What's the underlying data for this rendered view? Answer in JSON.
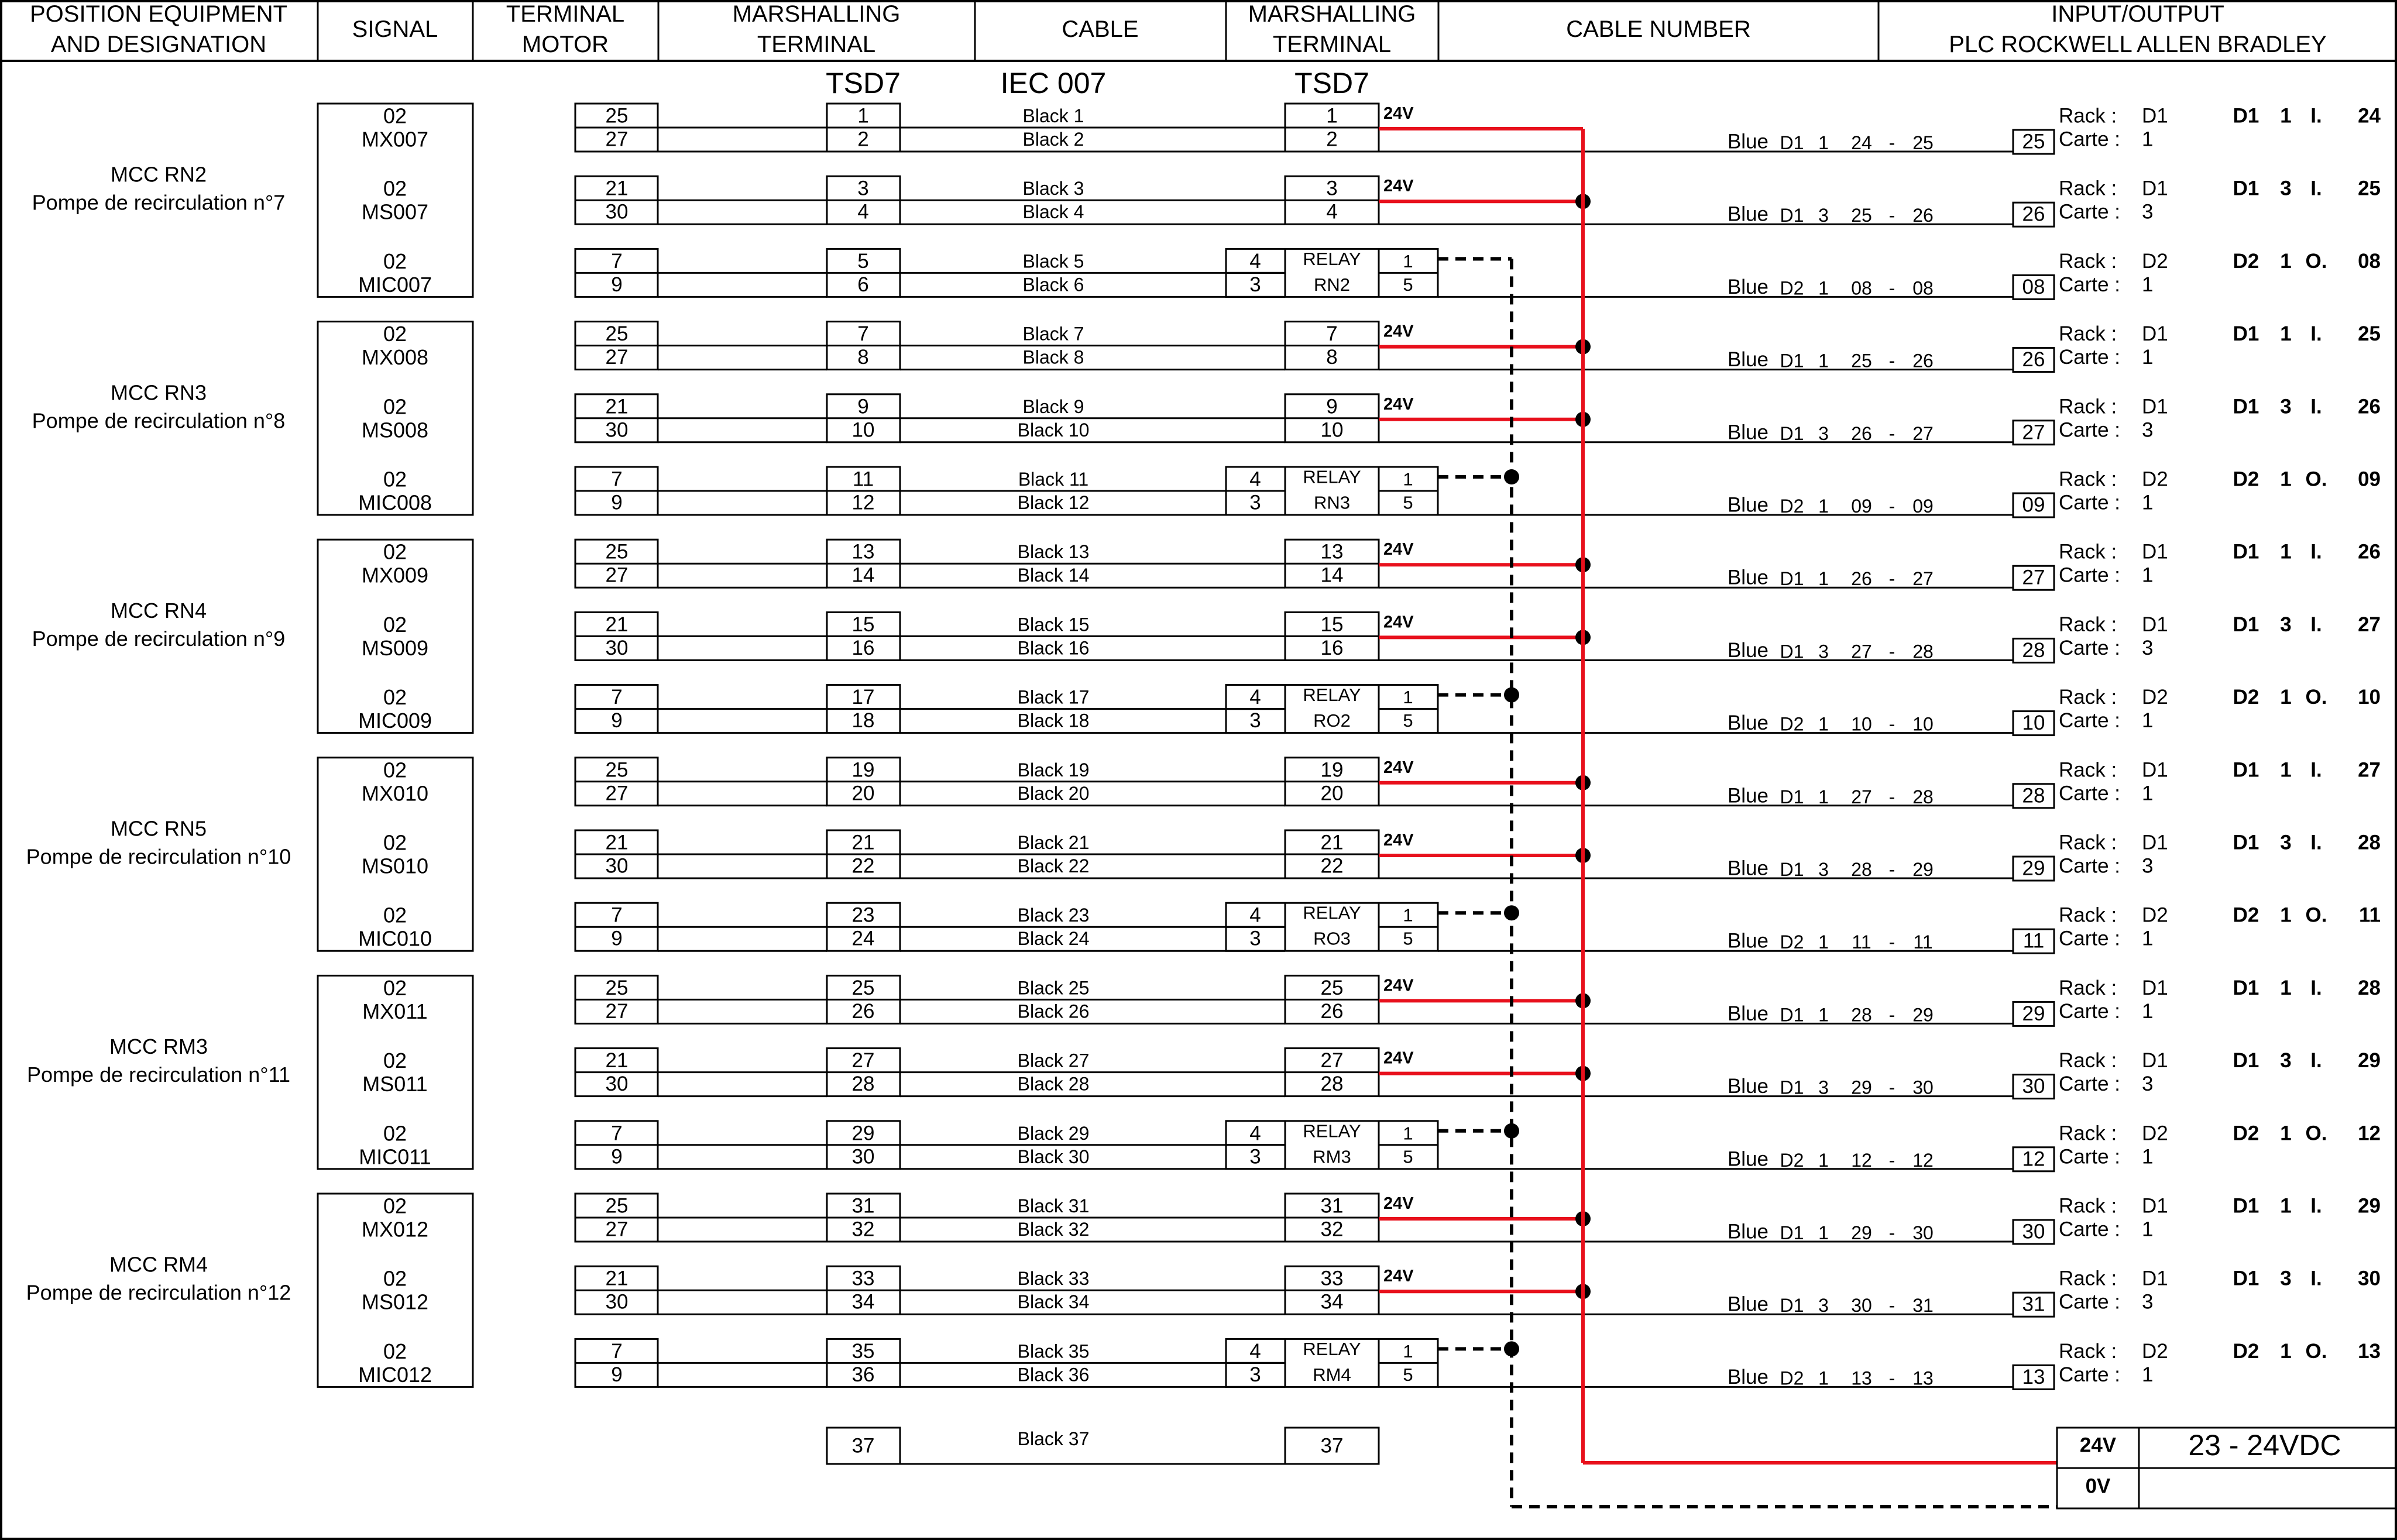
{
  "headers": [
    {
      "lines": [
        "POSITION EQUIPMENT",
        "AND DESIGNATION"
      ]
    },
    {
      "lines": [
        "SIGNAL"
      ]
    },
    {
      "lines": [
        "TERMINAL",
        "MOTOR"
      ]
    },
    {
      "lines": [
        "MARSHALLING",
        "TERMINAL"
      ]
    },
    {
      "lines": [
        "CABLE"
      ]
    },
    {
      "lines": [
        "MARSHALLING",
        "TERMINAL"
      ]
    },
    {
      "lines": [
        "CABLE NUMBER"
      ]
    },
    {
      "lines": [
        "INPUT/OUTPUT",
        "PLC ROCKWELL ALLEN BRADLEY"
      ]
    }
  ],
  "subheaders": {
    "tsd_left": "TSD7",
    "cable_ref": "IEC 007",
    "tsd_right": "TSD7"
  },
  "colors": {
    "red": "#e8101c",
    "line": "#000000"
  },
  "groups": [
    {
      "lines": [
        "MCC RN2",
        "Pompe de recirculation n°7"
      ]
    },
    {
      "lines": [
        "MCC RN3",
        "Pompe de recirculation n°8"
      ]
    },
    {
      "lines": [
        "MCC RN4",
        "Pompe de recirculation n°9"
      ]
    },
    {
      "lines": [
        "MCC RN5",
        "Pompe de recirculation n°10"
      ]
    },
    {
      "lines": [
        "MCC RM3",
        "Pompe de recirculation n°11"
      ]
    },
    {
      "lines": [
        "MCC RM4",
        "Pompe de recirculation n°12"
      ]
    }
  ],
  "rows": [
    {
      "sig": [
        "02",
        "MX007"
      ],
      "mt": [
        "25",
        "27"
      ],
      "t": [
        "1",
        "2"
      ],
      "cab": [
        "Black 1",
        "Black 2"
      ],
      "tr": [
        "1",
        "2"
      ],
      "relay": null,
      "v24": "24V",
      "blue": "Blue",
      "cn": [
        "D1",
        "1",
        "24",
        "-",
        "25"
      ],
      "box": "25",
      "rack": [
        "Rack :",
        "D1"
      ],
      "carte": [
        "Carte :",
        "1"
      ],
      "addr": [
        "D1",
        "1",
        "I.",
        "24"
      ]
    },
    {
      "sig": [
        "02",
        "MS007"
      ],
      "mt": [
        "21",
        "30"
      ],
      "t": [
        "3",
        "4"
      ],
      "cab": [
        "Black 3",
        "Black 4"
      ],
      "tr": [
        "3",
        "4"
      ],
      "relay": null,
      "v24": "24V",
      "blue": "Blue",
      "cn": [
        "D1",
        "3",
        "25",
        "-",
        "26"
      ],
      "box": "26",
      "rack": [
        "Rack :",
        "D1"
      ],
      "carte": [
        "Carte :",
        "3"
      ],
      "addr": [
        "D1",
        "3",
        "I.",
        "25"
      ]
    },
    {
      "sig": [
        "02",
        "MIC007"
      ],
      "mt": [
        "7",
        "9"
      ],
      "t": [
        "5",
        "6"
      ],
      "cab": [
        "Black 5",
        "Black 6"
      ],
      "tr": null,
      "relay": {
        "l": [
          "4",
          "3"
        ],
        "m": [
          "RELAY",
          "RN2"
        ],
        "r": [
          "1",
          "5"
        ]
      },
      "v24": "",
      "blue": "Blue",
      "cn": [
        "D2",
        "1",
        "08",
        "-",
        "08"
      ],
      "box": "08",
      "rack": [
        "Rack :",
        "D2"
      ],
      "carte": [
        "Carte :",
        "1"
      ],
      "addr": [
        "D2",
        "1",
        "O.",
        "08"
      ]
    },
    {
      "sig": [
        "02",
        "MX008"
      ],
      "mt": [
        "25",
        "27"
      ],
      "t": [
        "7",
        "8"
      ],
      "cab": [
        "Black 7",
        "Black 8"
      ],
      "tr": [
        "7",
        "8"
      ],
      "relay": null,
      "v24": "24V",
      "blue": "Blue",
      "cn": [
        "D1",
        "1",
        "25",
        "-",
        "26"
      ],
      "box": "26",
      "rack": [
        "Rack :",
        "D1"
      ],
      "carte": [
        "Carte :",
        "1"
      ],
      "addr": [
        "D1",
        "1",
        "I.",
        "25"
      ]
    },
    {
      "sig": [
        "02",
        "MS008"
      ],
      "mt": [
        "21",
        "30"
      ],
      "t": [
        "9",
        "10"
      ],
      "cab": [
        "Black 9",
        "Black 10"
      ],
      "tr": [
        "9",
        "10"
      ],
      "relay": null,
      "v24": "24V",
      "blue": "Blue",
      "cn": [
        "D1",
        "3",
        "26",
        "-",
        "27"
      ],
      "box": "27",
      "rack": [
        "Rack :",
        "D1"
      ],
      "carte": [
        "Carte :",
        "3"
      ],
      "addr": [
        "D1",
        "3",
        "I.",
        "26"
      ]
    },
    {
      "sig": [
        "02",
        "MIC008"
      ],
      "mt": [
        "7",
        "9"
      ],
      "t": [
        "11",
        "12"
      ],
      "cab": [
        "Black 11",
        "Black 12"
      ],
      "tr": null,
      "relay": {
        "l": [
          "4",
          "3"
        ],
        "m": [
          "RELAY",
          "RN3"
        ],
        "r": [
          "1",
          "5"
        ]
      },
      "v24": "",
      "blue": "Blue",
      "cn": [
        "D2",
        "1",
        "09",
        "-",
        "09"
      ],
      "box": "09",
      "rack": [
        "Rack :",
        "D2"
      ],
      "carte": [
        "Carte :",
        "1"
      ],
      "addr": [
        "D2",
        "1",
        "O.",
        "09"
      ]
    },
    {
      "sig": [
        "02",
        "MX009"
      ],
      "mt": [
        "25",
        "27"
      ],
      "t": [
        "13",
        "14"
      ],
      "cab": [
        "Black 13",
        "Black 14"
      ],
      "tr": [
        "13",
        "14"
      ],
      "relay": null,
      "v24": "24V",
      "blue": "Blue",
      "cn": [
        "D1",
        "1",
        "26",
        "-",
        "27"
      ],
      "box": "27",
      "rack": [
        "Rack :",
        "D1"
      ],
      "carte": [
        "Carte :",
        "1"
      ],
      "addr": [
        "D1",
        "1",
        "I.",
        "26"
      ]
    },
    {
      "sig": [
        "02",
        "MS009"
      ],
      "mt": [
        "21",
        "30"
      ],
      "t": [
        "15",
        "16"
      ],
      "cab": [
        "Black 15",
        "Black 16"
      ],
      "tr": [
        "15",
        "16"
      ],
      "relay": null,
      "v24": "24V",
      "blue": "Blue",
      "cn": [
        "D1",
        "3",
        "27",
        "-",
        "28"
      ],
      "box": "28",
      "rack": [
        "Rack :",
        "D1"
      ],
      "carte": [
        "Carte :",
        "3"
      ],
      "addr": [
        "D1",
        "3",
        "I.",
        "27"
      ]
    },
    {
      "sig": [
        "02",
        "MIC009"
      ],
      "mt": [
        "7",
        "9"
      ],
      "t": [
        "17",
        "18"
      ],
      "cab": [
        "Black 17",
        "Black 18"
      ],
      "tr": null,
      "relay": {
        "l": [
          "4",
          "3"
        ],
        "m": [
          "RELAY",
          "RO2"
        ],
        "r": [
          "1",
          "5"
        ]
      },
      "v24": "",
      "blue": "Blue",
      "cn": [
        "D2",
        "1",
        "10",
        "-",
        "10"
      ],
      "box": "10",
      "rack": [
        "Rack :",
        "D2"
      ],
      "carte": [
        "Carte :",
        "1"
      ],
      "addr": [
        "D2",
        "1",
        "O.",
        "10"
      ]
    },
    {
      "sig": [
        "02",
        "MX010"
      ],
      "mt": [
        "25",
        "27"
      ],
      "t": [
        "19",
        "20"
      ],
      "cab": [
        "Black 19",
        "Black 20"
      ],
      "tr": [
        "19",
        "20"
      ],
      "relay": null,
      "v24": "24V",
      "blue": "Blue",
      "cn": [
        "D1",
        "1",
        "27",
        "-",
        "28"
      ],
      "box": "28",
      "rack": [
        "Rack :",
        "D1"
      ],
      "carte": [
        "Carte :",
        "1"
      ],
      "addr": [
        "D1",
        "1",
        "I.",
        "27"
      ]
    },
    {
      "sig": [
        "02",
        "MS010"
      ],
      "mt": [
        "21",
        "30"
      ],
      "t": [
        "21",
        "22"
      ],
      "cab": [
        "Black 21",
        "Black 22"
      ],
      "tr": [
        "21",
        "22"
      ],
      "relay": null,
      "v24": "24V",
      "blue": "Blue",
      "cn": [
        "D1",
        "3",
        "28",
        "-",
        "29"
      ],
      "box": "29",
      "rack": [
        "Rack :",
        "D1"
      ],
      "carte": [
        "Carte :",
        "3"
      ],
      "addr": [
        "D1",
        "3",
        "I.",
        "28"
      ]
    },
    {
      "sig": [
        "02",
        "MIC010"
      ],
      "mt": [
        "7",
        "9"
      ],
      "t": [
        "23",
        "24"
      ],
      "cab": [
        "Black 23",
        "Black 24"
      ],
      "tr": null,
      "relay": {
        "l": [
          "4",
          "3"
        ],
        "m": [
          "RELAY",
          "RO3"
        ],
        "r": [
          "1",
          "5"
        ]
      },
      "v24": "",
      "blue": "Blue",
      "cn": [
        "D2",
        "1",
        "11",
        "-",
        "11"
      ],
      "box": "11",
      "rack": [
        "Rack :",
        "D2"
      ],
      "carte": [
        "Carte :",
        "1"
      ],
      "addr": [
        "D2",
        "1",
        "O.",
        "11"
      ]
    },
    {
      "sig": [
        "02",
        "MX011"
      ],
      "mt": [
        "25",
        "27"
      ],
      "t": [
        "25",
        "26"
      ],
      "cab": [
        "Black 25",
        "Black 26"
      ],
      "tr": [
        "25",
        "26"
      ],
      "relay": null,
      "v24": "24V",
      "blue": "Blue",
      "cn": [
        "D1",
        "1",
        "28",
        "-",
        "29"
      ],
      "box": "29",
      "rack": [
        "Rack :",
        "D1"
      ],
      "carte": [
        "Carte :",
        "1"
      ],
      "addr": [
        "D1",
        "1",
        "I.",
        "28"
      ]
    },
    {
      "sig": [
        "02",
        "MS011"
      ],
      "mt": [
        "21",
        "30"
      ],
      "t": [
        "27",
        "28"
      ],
      "cab": [
        "Black 27",
        "Black 28"
      ],
      "tr": [
        "27",
        "28"
      ],
      "relay": null,
      "v24": "24V",
      "blue": "Blue",
      "cn": [
        "D1",
        "3",
        "29",
        "-",
        "30"
      ],
      "box": "30",
      "rack": [
        "Rack :",
        "D1"
      ],
      "carte": [
        "Carte :",
        "3"
      ],
      "addr": [
        "D1",
        "3",
        "I.",
        "29"
      ]
    },
    {
      "sig": [
        "02",
        "MIC011"
      ],
      "mt": [
        "7",
        "9"
      ],
      "t": [
        "29",
        "30"
      ],
      "cab": [
        "Black 29",
        "Black 30"
      ],
      "tr": null,
      "relay": {
        "l": [
          "4",
          "3"
        ],
        "m": [
          "RELAY",
          "RM3"
        ],
        "r": [
          "1",
          "5"
        ]
      },
      "v24": "",
      "blue": "Blue",
      "cn": [
        "D2",
        "1",
        "12",
        "-",
        "12"
      ],
      "box": "12",
      "rack": [
        "Rack :",
        "D2"
      ],
      "carte": [
        "Carte :",
        "1"
      ],
      "addr": [
        "D2",
        "1",
        "O.",
        "12"
      ]
    },
    {
      "sig": [
        "02",
        "MX012"
      ],
      "mt": [
        "25",
        "27"
      ],
      "t": [
        "31",
        "32"
      ],
      "cab": [
        "Black 31",
        "Black 32"
      ],
      "tr": [
        "31",
        "32"
      ],
      "relay": null,
      "v24": "24V",
      "blue": "Blue",
      "cn": [
        "D1",
        "1",
        "29",
        "-",
        "30"
      ],
      "box": "30",
      "rack": [
        "Rack :",
        "D1"
      ],
      "carte": [
        "Carte :",
        "1"
      ],
      "addr": [
        "D1",
        "1",
        "I.",
        "29"
      ]
    },
    {
      "sig": [
        "02",
        "MS012"
      ],
      "mt": [
        "21",
        "30"
      ],
      "t": [
        "33",
        "34"
      ],
      "cab": [
        "Black 33",
        "Black 34"
      ],
      "tr": [
        "33",
        "34"
      ],
      "relay": null,
      "v24": "24V",
      "blue": "Blue",
      "cn": [
        "D1",
        "3",
        "30",
        "-",
        "31"
      ],
      "box": "31",
      "rack": [
        "Rack :",
        "D1"
      ],
      "carte": [
        "Carte :",
        "3"
      ],
      "addr": [
        "D1",
        "3",
        "I.",
        "30"
      ]
    },
    {
      "sig": [
        "02",
        "MIC012"
      ],
      "mt": [
        "7",
        "9"
      ],
      "t": [
        "35",
        "36"
      ],
      "cab": [
        "Black 35",
        "Black 36"
      ],
      "tr": null,
      "relay": {
        "l": [
          "4",
          "3"
        ],
        "m": [
          "RELAY",
          "RM4"
        ],
        "r": [
          "1",
          "5"
        ]
      },
      "v24": "",
      "blue": "Blue",
      "cn": [
        "D2",
        "1",
        "13",
        "-",
        "13"
      ],
      "box": "13",
      "rack": [
        "Rack :",
        "D2"
      ],
      "carte": [
        "Carte :",
        "1"
      ],
      "addr": [
        "D2",
        "1",
        "O.",
        "13"
      ]
    }
  ],
  "spare": {
    "t": "37",
    "cab": "Black 37",
    "tr": "37"
  },
  "psu": {
    "v24": "24V",
    "v0": "0V",
    "label": "23 - 24VDC"
  }
}
